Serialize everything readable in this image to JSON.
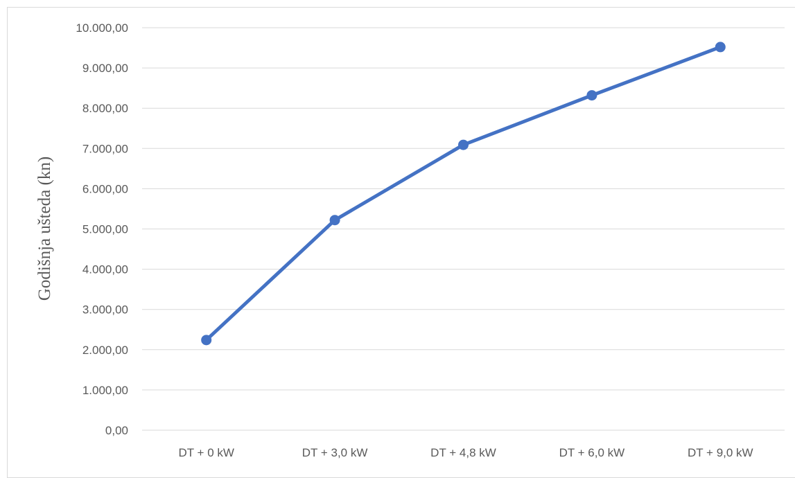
{
  "chart_data": {
    "type": "line",
    "title": "",
    "xlabel": "",
    "ylabel": "Godišnja ušteda (kn)",
    "categories": [
      "DT + 0 kW",
      "DT + 3,0 kW",
      "DT + 4,8 kW",
      "DT + 6,0 kW",
      "DT + 9,0 kW"
    ],
    "series": [
      {
        "values": [
          2240,
          5220,
          7090,
          8320,
          9520
        ],
        "color": "#4472c4"
      }
    ],
    "ylim": [
      0,
      10000
    ],
    "yticks": [
      0,
      1000,
      2000,
      3000,
      4000,
      5000,
      6000,
      7000,
      8000,
      9000,
      10000
    ],
    "ytick_labels": [
      "0,00",
      "1.000,00",
      "2.000,00",
      "3.000,00",
      "4.000,00",
      "5.000,00",
      "6.000,00",
      "7.000,00",
      "8.000,00",
      "9.000,00",
      "10.000,00"
    ],
    "grid": true,
    "legend": "none"
  }
}
